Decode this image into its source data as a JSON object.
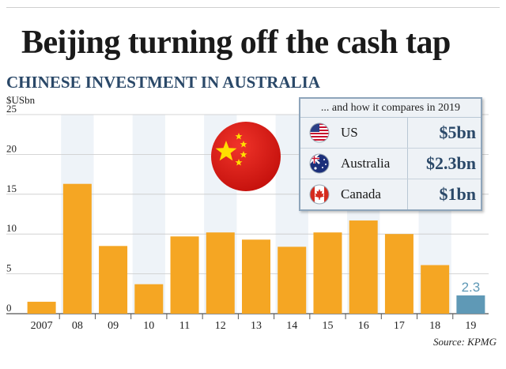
{
  "headline": "Beijing turning off the cash tap",
  "subhead": "CHINESE INVESTMENT IN AUSTRALIA",
  "comparison": {
    "title": "... and how it compares in 2019",
    "rows": [
      {
        "country": "US",
        "value": "$5bn",
        "flag": "us-flag-icon"
      },
      {
        "country": "Australia",
        "value": "$2.3bn",
        "flag": "australia-flag-icon"
      },
      {
        "country": "Canada",
        "value": "$1bn",
        "flag": "canada-flag-icon"
      }
    ]
  },
  "source": "Source: KPMG",
  "colors": {
    "bar": "#f5a623",
    "highlight": "#5f99b6",
    "title_blue": "#2a4868"
  },
  "chart_data": {
    "type": "bar",
    "ylabel": "$USbn",
    "ylim": [
      0,
      25
    ],
    "yticks": [
      0,
      5,
      10,
      15,
      20,
      25
    ],
    "categories": [
      "2007",
      "08",
      "09",
      "10",
      "11",
      "12",
      "13",
      "14",
      "15",
      "16",
      "17",
      "18",
      "19"
    ],
    "values": [
      1.5,
      16.3,
      8.5,
      3.7,
      9.7,
      10.2,
      9.3,
      8.4,
      10.2,
      11.7,
      10.0,
      6.1,
      2.3
    ],
    "highlight_index": 12,
    "data_labels": [
      {
        "index": 12,
        "text": "2.3"
      }
    ],
    "grid": true
  }
}
